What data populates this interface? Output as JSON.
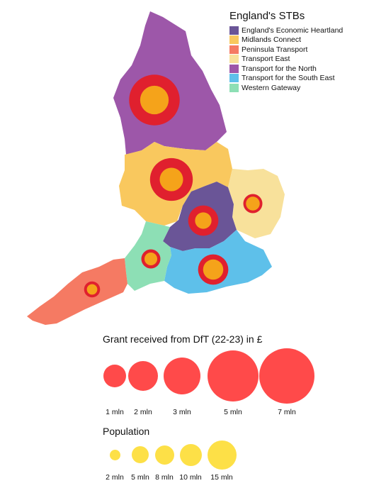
{
  "legend": {
    "title": "England's STBs",
    "items": [
      {
        "label": "England's Economic Heartland",
        "color": "#6a5597"
      },
      {
        "label": "Midlands Connect",
        "color": "#f9c85e"
      },
      {
        "label": "Peninsula Transport",
        "color": "#f57a63"
      },
      {
        "label": "Transport East",
        "color": "#f8e19b"
      },
      {
        "label": "Transport for the North",
        "color": "#9d57a9"
      },
      {
        "label": "Transport for the South East",
        "color": "#5ec0ea"
      },
      {
        "label": "Western Gateway",
        "color": "#8ddfb5"
      }
    ]
  },
  "regions": [
    {
      "name": "Transport for the North",
      "grant_mln": 7,
      "population_mln": 15
    },
    {
      "name": "Midlands Connect",
      "grant_mln": 5,
      "population_mln": 10
    },
    {
      "name": "Transport East",
      "grant_mln": 1,
      "population_mln": 3.5
    },
    {
      "name": "England's Economic Heartland",
      "grant_mln": 2.5,
      "population_mln": 5
    },
    {
      "name": "Western Gateway",
      "grant_mln": 1,
      "population_mln": 3
    },
    {
      "name": "Transport for the South East",
      "grant_mln": 2.5,
      "population_mln": 7.5
    },
    {
      "name": "Peninsula Transport",
      "grant_mln": 0.7,
      "population_mln": 2
    }
  ],
  "grant_legend": {
    "title": "Grant received from DfT (22-23) in £",
    "color": "#ff4a4a",
    "labels": [
      "1 mln",
      "2 mln",
      "3 mln",
      "5 mln",
      "7 mln"
    ]
  },
  "population_legend": {
    "title": "Population",
    "color": "#fde047",
    "labels": [
      "2 mln",
      "5 mln",
      "8 mln",
      "10 mln",
      "15 mln"
    ]
  },
  "colors": {
    "grant_circle": "#e0202e",
    "population_circle": "#f5a31a",
    "ring_inner": "#f04a22"
  }
}
